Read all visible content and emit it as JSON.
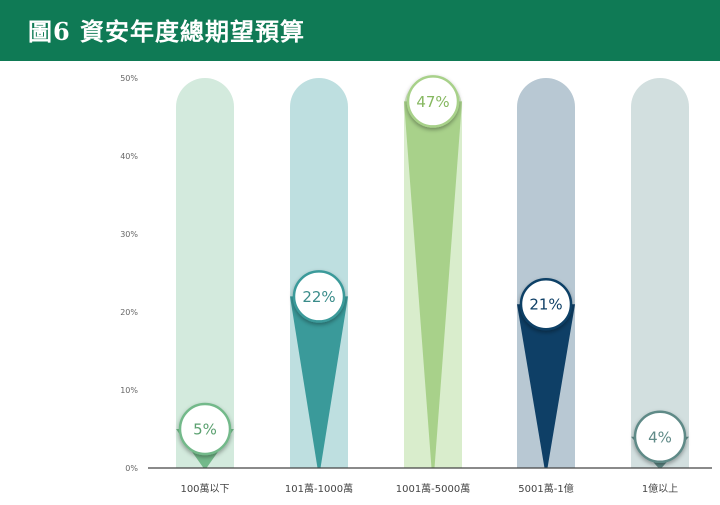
{
  "header": {
    "title": "圖6  資安年度總期望預算"
  },
  "colors": {
    "header_bg": "#0f7a55"
  },
  "chart_data": {
    "type": "bar",
    "title": "圖6  資安年度總期望預算",
    "categories": [
      "100萬以下",
      "101萬-1000萬",
      "1001萬-5000萬",
      "5001萬-1億",
      "1億以上"
    ],
    "values": [
      5,
      22,
      47,
      21,
      4
    ],
    "value_labels": [
      "5%",
      "22%",
      "47%",
      "21%",
      "4%"
    ],
    "ylim": [
      0,
      50
    ],
    "yticks": [
      0,
      10,
      20,
      30,
      40,
      50
    ],
    "ytick_labels": [
      "0%",
      "10%",
      "20%",
      "30%",
      "40%",
      "50%"
    ],
    "bar_colors": [
      "#73b98a",
      "#3a9a9a",
      "#a8d18a",
      "#0e3f66",
      "#5f8a87"
    ],
    "track_colors": [
      "#d3eadd",
      "#bedfe0",
      "#d9edcc",
      "#b8c8d3",
      "#d2dfdf"
    ],
    "text_colors": [
      "#5aa06f",
      "#3a8c8a",
      "#86b860",
      "#0e3f66",
      "#5f8a87"
    ],
    "grid": false
  }
}
